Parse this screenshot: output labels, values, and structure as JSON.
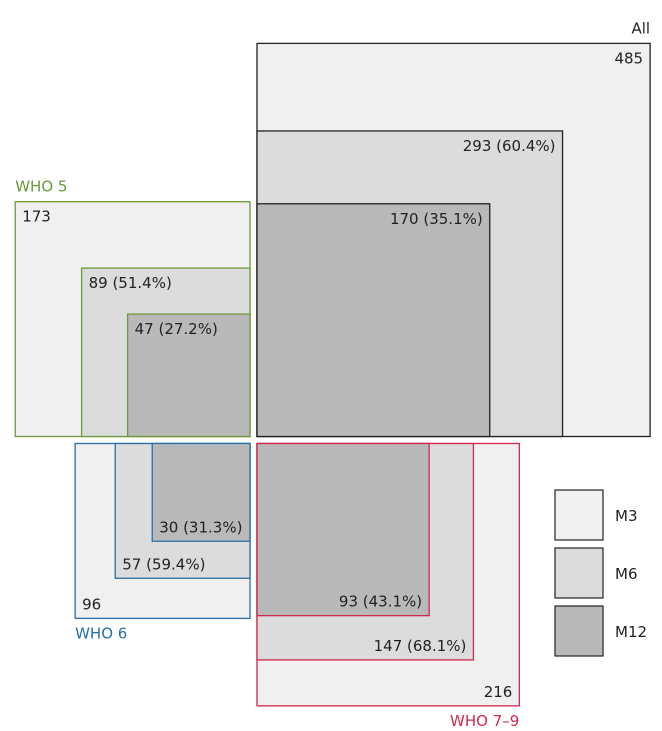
{
  "chart_data": {
    "type": "nested-squares",
    "groups": [
      {
        "name": "All",
        "color": "#222222",
        "corner": "bottom-left",
        "values": [
          485,
          293,
          170
        ],
        "value_labels": [
          "485",
          "293 (60.4%)",
          "170 (35.1%)"
        ]
      },
      {
        "name": "WHO 5",
        "color": "#6a9a3a",
        "corner": "bottom-right",
        "values": [
          173,
          89,
          47
        ],
        "value_labels": [
          "173",
          "89 (51.4%)",
          "47 (27.2%)"
        ]
      },
      {
        "name": "WHO 6",
        "color": "#2a6ea6",
        "corner": "top-right",
        "values": [
          96,
          57,
          30
        ],
        "value_labels": [
          "96",
          "57 (59.4%)",
          "30 (31.3%)"
        ]
      },
      {
        "name": "WHO 7–9",
        "color": "#d0284f",
        "corner": "top-left",
        "values": [
          216,
          147,
          93
        ],
        "value_labels": [
          "216",
          "147 (68.1%)",
          "93 (43.1%)"
        ]
      }
    ],
    "series": [
      {
        "name": "M3",
        "color": "#f0f0f0"
      },
      {
        "name": "M6",
        "color": "#dcdcdd"
      },
      {
        "name": "M12",
        "color": "#b9b9ba"
      }
    ]
  }
}
